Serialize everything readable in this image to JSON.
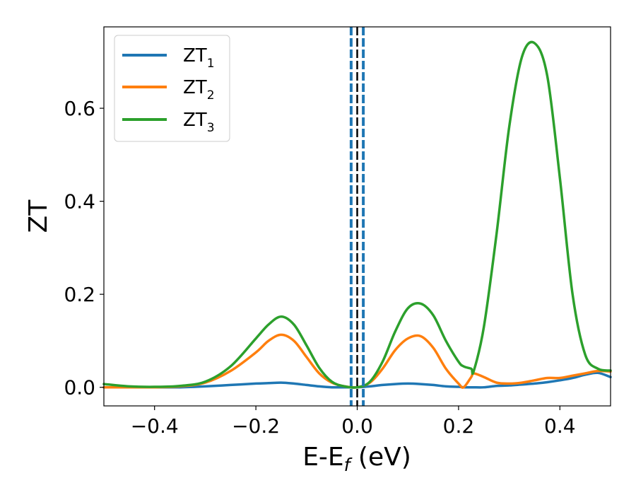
{
  "chart_data": {
    "type": "line",
    "title": "",
    "xlabel": "E-E",
    "xlabel_sub": "f",
    "xlabel_unit": " (eV)",
    "ylabel": "ZT",
    "xlim": [
      -0.5,
      0.5
    ],
    "ylim": [
      -0.04,
      0.775
    ],
    "xticks": [
      -0.4,
      -0.2,
      0.0,
      0.2,
      0.4
    ],
    "xtick_labels": [
      "−0.4",
      "−0.2",
      "0.0",
      "0.2",
      "0.4"
    ],
    "yticks": [
      0.0,
      0.2,
      0.4,
      0.6
    ],
    "ytick_labels": [
      "0.0",
      "0.2",
      "0.4",
      "0.6"
    ],
    "grid": false,
    "legend_position": "top-left",
    "vlines": [
      {
        "x": 0.0,
        "color": "#000000",
        "style": "dashed"
      },
      {
        "x": -0.012,
        "color": "#1f77b4",
        "style": "dashed"
      },
      {
        "x": 0.012,
        "color": "#1f77b4",
        "style": "dashed"
      }
    ],
    "x": [
      -0.5,
      -0.45,
      -0.4,
      -0.35,
      -0.3,
      -0.25,
      -0.2,
      -0.175,
      -0.15,
      -0.125,
      -0.1,
      -0.075,
      -0.05,
      -0.025,
      0.0,
      0.025,
      0.05,
      0.075,
      0.1,
      0.125,
      0.15,
      0.175,
      0.2,
      0.21,
      0.225,
      0.23,
      0.25,
      0.275,
      0.3,
      0.325,
      0.35,
      0.375,
      0.4,
      0.425,
      0.45,
      0.475,
      0.5
    ],
    "series": [
      {
        "name": "ZT",
        "name_sub": "1",
        "color": "#1f77b4",
        "values": [
          0.0,
          0.0,
          0.0,
          0.0,
          0.002,
          0.005,
          0.008,
          0.009,
          0.01,
          0.008,
          0.005,
          0.002,
          0.0,
          0.0,
          0.0,
          0.002,
          0.005,
          0.007,
          0.008,
          0.007,
          0.005,
          0.002,
          0.001,
          0.0,
          0.0,
          0.0,
          0.0,
          0.003,
          0.004,
          0.006,
          0.008,
          0.011,
          0.015,
          0.02,
          0.027,
          0.031,
          0.022
        ]
      },
      {
        "name": "ZT",
        "name_sub": "2",
        "color": "#ff7f0e",
        "values": [
          0.0,
          0.0,
          0.0,
          0.002,
          0.01,
          0.035,
          0.075,
          0.1,
          0.113,
          0.1,
          0.065,
          0.03,
          0.01,
          0.002,
          0.0,
          0.01,
          0.04,
          0.08,
          0.105,
          0.11,
          0.085,
          0.04,
          0.008,
          0.0,
          0.022,
          0.03,
          0.022,
          0.01,
          0.008,
          0.01,
          0.015,
          0.02,
          0.02,
          0.025,
          0.03,
          0.035,
          0.034
        ]
      },
      {
        "name": "ZT",
        "name_sub": "3",
        "color": "#2ca02c",
        "values": [
          0.007,
          0.002,
          0.001,
          0.003,
          0.012,
          0.045,
          0.105,
          0.135,
          0.152,
          0.135,
          0.09,
          0.042,
          0.012,
          0.002,
          0.0,
          0.012,
          0.055,
          0.12,
          0.17,
          0.18,
          0.155,
          0.1,
          0.055,
          0.045,
          0.04,
          0.035,
          0.13,
          0.33,
          0.56,
          0.71,
          0.74,
          0.67,
          0.45,
          0.2,
          0.07,
          0.04,
          0.036
        ]
      }
    ]
  }
}
